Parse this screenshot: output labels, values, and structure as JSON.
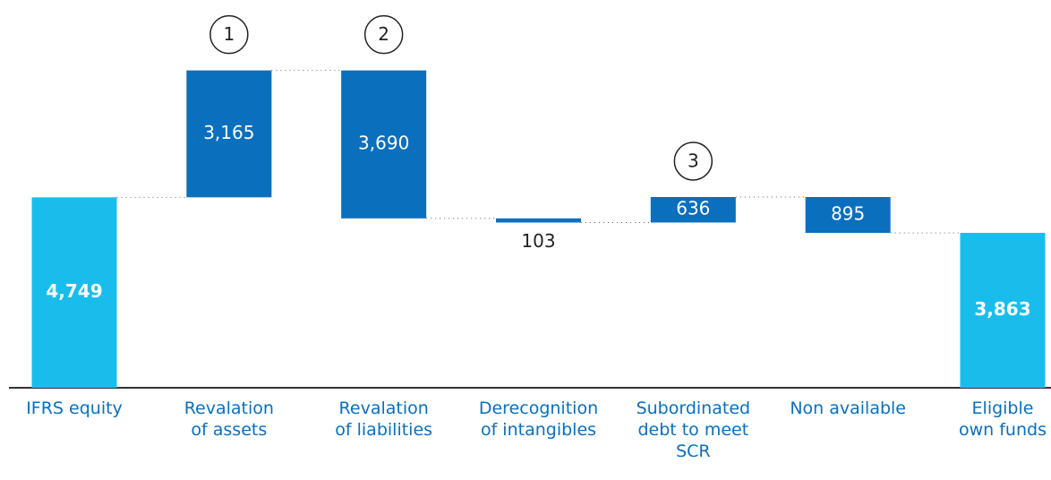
{
  "chart_data": {
    "type": "waterfall",
    "categories": [
      "IFRS equity",
      "Revalation\nof assets",
      "Revalation\nof liabilities",
      "Derecognition\nof intangibles",
      "Subordinated\ndebt to meet\nSCR",
      "Non available",
      "Eligible\nown funds"
    ],
    "values": [
      4749,
      3165,
      -3690,
      -103,
      636,
      -895,
      3863
    ],
    "value_labels": [
      "4,749",
      "3,165",
      "3,690",
      "103",
      "636",
      "895",
      "3,863"
    ],
    "measures": [
      "absolute",
      "relative",
      "relative",
      "relative",
      "relative",
      "relative",
      "total"
    ],
    "colors": [
      "#19bdec",
      "#0a6fbd",
      "#0a6fbd",
      "#0a6fbd",
      "#0a6fbd",
      "#0a6fbd",
      "#19bdec"
    ],
    "ylim": [
      0,
      9000
    ],
    "annotations": [
      {
        "label": "1",
        "index": 1
      },
      {
        "label": "2",
        "index": 2
      },
      {
        "label": "3",
        "index": 4
      }
    ]
  }
}
